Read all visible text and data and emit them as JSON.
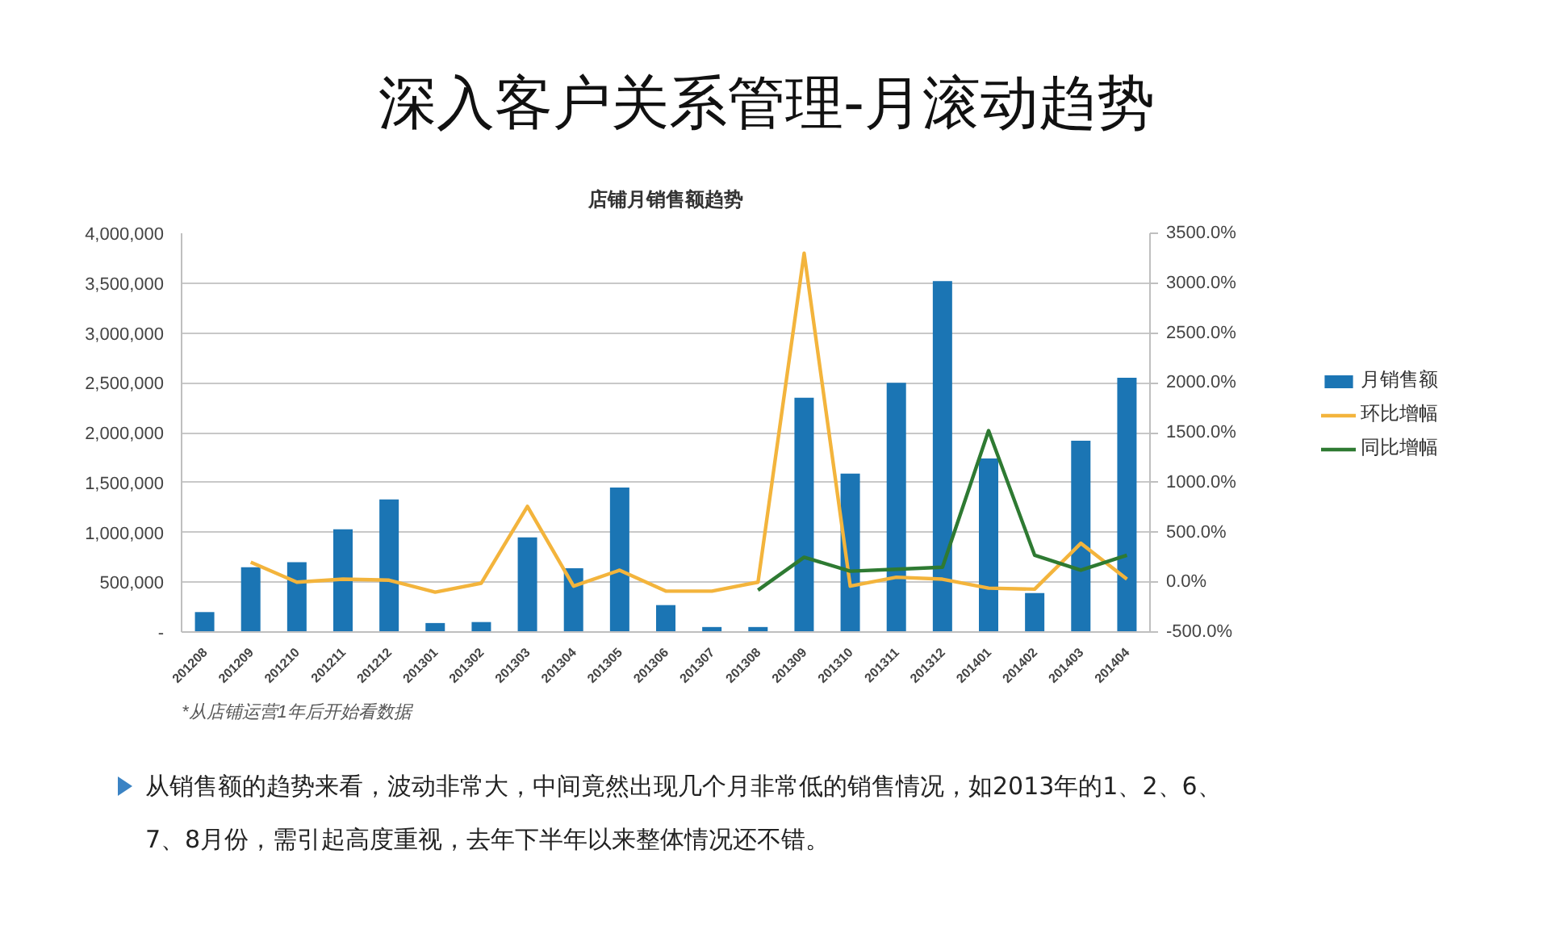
{
  "chart_data": {
    "type": "bar",
    "title": "深入客户关系管理-月滚动趋势",
    "subtitle": "店铺月销售额趋势",
    "categories": [
      "201208",
      "201209",
      "201210",
      "201211",
      "201212",
      "201301",
      "201302",
      "201303",
      "201304",
      "201305",
      "201306",
      "201307",
      "201308",
      "201309",
      "201310",
      "201311",
      "201312",
      "201401",
      "201402",
      "201403",
      "201404"
    ],
    "series": [
      {
        "name": "月销售额",
        "color": "#1b75b4",
        "values": [
          200000,
          650000,
          700000,
          1030000,
          1330000,
          90000,
          100000,
          950000,
          640000,
          1450000,
          270000,
          50000,
          50000,
          2350000,
          1590000,
          2500000,
          3520000,
          1740000,
          390000,
          1920000,
          2550000
        ]
      },
      {
        "name": "环比增幅",
        "type": "line",
        "axis": "y2",
        "color": "#f3b43c",
        "values": [
          null,
          200,
          0,
          30,
          20,
          -100,
          -10,
          760,
          -40,
          120,
          -90,
          -90,
          0,
          3300,
          -40,
          50,
          30,
          -60,
          -70,
          390,
          30
        ]
      },
      {
        "name": "同比增幅",
        "type": "line",
        "axis": "y2",
        "color": "#2e7a32",
        "values": [
          null,
          null,
          null,
          null,
          null,
          null,
          null,
          null,
          null,
          null,
          null,
          null,
          -80,
          250,
          110,
          130,
          150,
          1520,
          270,
          120,
          270
        ]
      }
    ],
    "ylim": [
      0,
      4000000
    ],
    "yticks": [
      {
        "value": 0,
        "label": "-"
      },
      {
        "value": 500000,
        "label": "500,000"
      },
      {
        "value": 1000000,
        "label": "1,000,000"
      },
      {
        "value": 1500000,
        "label": "1,500,000"
      },
      {
        "value": 2000000,
        "label": "2,000,000"
      },
      {
        "value": 2500000,
        "label": "2,500,000"
      },
      {
        "value": 3000000,
        "label": "3,000,000"
      },
      {
        "value": 3500000,
        "label": "3,500,000"
      },
      {
        "value": 4000000,
        "label": "4,000,000"
      }
    ],
    "y2lim": [
      -500,
      3500
    ],
    "y2ticks": [
      {
        "value": -500,
        "label": "-500.0%"
      },
      {
        "value": 0,
        "label": "0.0%"
      },
      {
        "value": 500,
        "label": "500.0%"
      },
      {
        "value": 1000,
        "label": "1000.0%"
      },
      {
        "value": 1500,
        "label": "1500.0%"
      },
      {
        "value": 2000,
        "label": "2000.0%"
      },
      {
        "value": 2500,
        "label": "2500.0%"
      },
      {
        "value": 3000,
        "label": "3000.0%"
      },
      {
        "value": 3500,
        "label": "3500.0%"
      }
    ],
    "grid": "y",
    "legend": "right",
    "annotations": [
      "*从店铺运营1年后开始看数据",
      "从销售额的趋势来看，波动非常大，中间竟然出现几个月非常低的销售情况，如2013年的1、2、6、7、8月份，需引起高度重视，去年下半年以来整体情况还不错。"
    ]
  }
}
